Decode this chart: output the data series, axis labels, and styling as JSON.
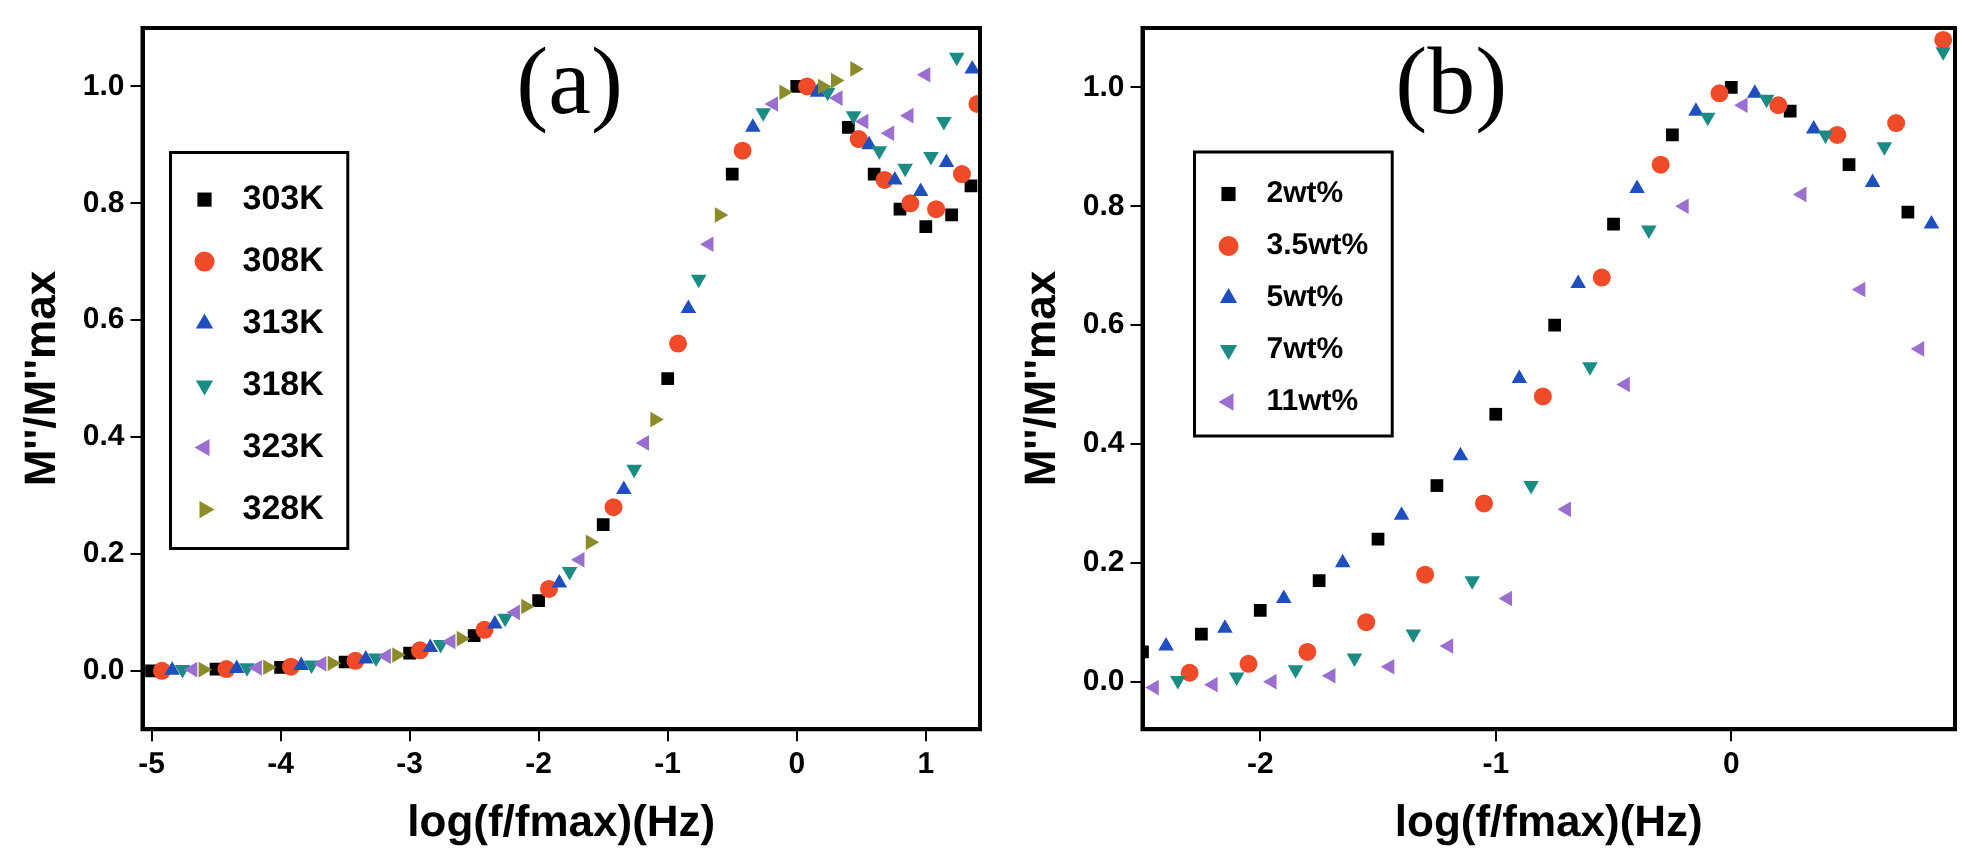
{
  "chart_data": [
    {
      "type": "scatter",
      "xlabel": "log(f/fmax)(Hz)",
      "ylabel": "M''/M''max",
      "annotations": [
        "(a)"
      ],
      "legend": "left",
      "grid": false,
      "xlim": [
        -5.07,
        1.42
      ],
      "xticks": [
        -5,
        -4,
        -3,
        -2,
        -1,
        0,
        1
      ],
      "ylim": [
        -0.1,
        1.1
      ],
      "yticks": [
        {
          "value": 0,
          "label": "0.0"
        },
        {
          "value": 0.2,
          "label": "0.2"
        },
        {
          "value": 0.4,
          "label": "0.4"
        },
        {
          "value": 0.6,
          "label": "0.6"
        },
        {
          "value": 0.8,
          "label": "0.8"
        },
        {
          "value": 1,
          "label": "1.0"
        }
      ],
      "series": [
        {
          "name": "303K",
          "color": "#000000",
          "marker": "square",
          "x": [
            -5,
            -4.5,
            -4,
            -3.5,
            -3,
            -2.5,
            -2,
            -1.5,
            -1,
            -0.5,
            0,
            0.4,
            0.6,
            0.8,
            1.0,
            1.2,
            1.35
          ],
          "values": [
            0,
            0.003,
            0.006,
            0.015,
            0.03,
            0.06,
            0.12,
            0.25,
            0.5,
            0.85,
            1.0,
            0.93,
            0.85,
            0.79,
            0.76,
            0.78,
            0.83
          ]
        },
        {
          "name": "308K",
          "color": "#f04a28",
          "marker": "circle",
          "x": [
            -4.92,
            -4.42,
            -3.92,
            -3.42,
            -2.92,
            -2.42,
            -1.92,
            -1.42,
            -0.92,
            -0.42,
            0.08,
            0.48,
            0.68,
            0.88,
            1.08,
            1.28,
            1.4
          ],
          "values": [
            0,
            0.003,
            0.007,
            0.017,
            0.035,
            0.07,
            0.14,
            0.28,
            0.56,
            0.89,
            1.0,
            0.91,
            0.84,
            0.8,
            0.79,
            0.85,
            0.97
          ]
        },
        {
          "name": "313K",
          "color": "#1f4fbf",
          "marker": "triangle",
          "x": [
            -4.84,
            -4.34,
            -3.84,
            -3.34,
            -2.84,
            -2.34,
            -1.84,
            -1.34,
            -0.84,
            -0.34,
            0.16,
            0.56,
            0.76,
            0.96,
            1.16,
            1.36
          ],
          "values": [
            0.001,
            0.004,
            0.009,
            0.02,
            0.04,
            0.08,
            0.15,
            0.31,
            0.62,
            0.93,
            0.99,
            0.9,
            0.84,
            0.82,
            0.87,
            1.03
          ]
        },
        {
          "name": "318K",
          "color": "#1a8c84",
          "marker": "triangle-down",
          "x": [
            -4.76,
            -4.26,
            -3.76,
            -3.26,
            -2.76,
            -2.26,
            -1.76,
            -1.26,
            -0.76,
            -0.26,
            0.24,
            0.44,
            0.64,
            0.84,
            1.04,
            1.14,
            1.24
          ],
          "values": [
            0.002,
            0.005,
            0.01,
            0.022,
            0.045,
            0.09,
            0.17,
            0.345,
            0.67,
            0.955,
            0.99,
            0.95,
            0.89,
            0.86,
            0.88,
            0.94,
            1.05
          ]
        },
        {
          "name": "323K",
          "color": "#9b6fcf",
          "marker": "triangle-left",
          "x": [
            -4.68,
            -4.18,
            -3.68,
            -3.18,
            -2.68,
            -2.18,
            -1.68,
            -1.18,
            -0.68,
            -0.18,
            0.32,
            0.52,
            0.72,
            0.87,
            1.0
          ],
          "values": [
            0.002,
            0.005,
            0.012,
            0.025,
            0.05,
            0.1,
            0.19,
            0.39,
            0.73,
            0.97,
            0.98,
            0.94,
            0.92,
            0.95,
            1.02
          ]
        },
        {
          "name": "328K",
          "color": "#8b8b2a",
          "marker": "triangle-right",
          "x": [
            -4.6,
            -4.1,
            -3.6,
            -3.1,
            -2.6,
            -2.1,
            -1.6,
            -1.1,
            -0.6,
            -0.1,
            0.2,
            0.3,
            0.45
          ],
          "values": [
            0.002,
            0.006,
            0.013,
            0.027,
            0.055,
            0.11,
            0.22,
            0.43,
            0.78,
            0.99,
            1.0,
            1.01,
            1.03
          ]
        }
      ]
    },
    {
      "type": "scatter",
      "xlabel": "log(f/fmax)(Hz)",
      "ylabel": "M''/M''max",
      "annotations": [
        "(b)"
      ],
      "legend": "top left",
      "grid": false,
      "xlim": [
        -2.5,
        0.95
      ],
      "xticks": [
        -2,
        -1,
        0
      ],
      "ylim": [
        -0.08,
        1.1
      ],
      "yticks": [
        {
          "value": 0,
          "label": "0.0"
        },
        {
          "value": 0.2,
          "label": "0.2"
        },
        {
          "value": 0.4,
          "label": "0.4"
        },
        {
          "value": 0.6,
          "label": "0.6"
        },
        {
          "value": 0.8,
          "label": "0.8"
        },
        {
          "value": 1,
          "label": "1.0"
        }
      ],
      "series": [
        {
          "name": "2wt%",
          "color": "#000000",
          "marker": "square",
          "x": [
            -2.5,
            -2.25,
            -2,
            -1.75,
            -1.5,
            -1.25,
            -1,
            -0.75,
            -0.5,
            -0.25,
            0,
            0.25,
            0.5,
            0.75
          ],
          "values": [
            0.05,
            0.08,
            0.12,
            0.17,
            0.24,
            0.33,
            0.45,
            0.6,
            0.77,
            0.92,
            1.0,
            0.96,
            0.87,
            0.79
          ]
        },
        {
          "name": "3.5wt%",
          "color": "#f04a28",
          "marker": "circle",
          "x": [
            -2.3,
            -2.05,
            -1.8,
            -1.55,
            -1.3,
            -1.05,
            -0.8,
            -0.55,
            -0.3,
            -0.05,
            0.2,
            0.45,
            0.7,
            0.9
          ],
          "values": [
            0.015,
            0.03,
            0.05,
            0.1,
            0.18,
            0.3,
            0.48,
            0.68,
            0.87,
            0.99,
            0.97,
            0.92,
            0.94,
            1.08
          ]
        },
        {
          "name": "5wt%",
          "color": "#1f4fbf",
          "marker": "triangle",
          "x": [
            -2.4,
            -2.15,
            -1.9,
            -1.65,
            -1.4,
            -1.15,
            -0.9,
            -0.65,
            -0.4,
            -0.15,
            0.1,
            0.35,
            0.6,
            0.85
          ],
          "values": [
            0.06,
            0.09,
            0.14,
            0.2,
            0.28,
            0.38,
            0.51,
            0.67,
            0.83,
            0.96,
            0.99,
            0.93,
            0.84,
            0.77
          ]
        },
        {
          "name": "7wt%",
          "color": "#1a8c84",
          "marker": "triangle-down",
          "x": [
            -2.35,
            -2.1,
            -1.85,
            -1.6,
            -1.35,
            -1.1,
            -0.85,
            -0.6,
            -0.35,
            -0.1,
            0.15,
            0.4,
            0.65,
            0.9
          ],
          "values": [
            0.002,
            0.008,
            0.02,
            0.04,
            0.08,
            0.17,
            0.33,
            0.53,
            0.76,
            0.95,
            0.98,
            0.92,
            0.9,
            1.06
          ]
        },
        {
          "name": "11wt%",
          "color": "#9b6fcf",
          "marker": "triangle-left",
          "x": [
            -2.45,
            -2.2,
            -1.95,
            -1.7,
            -1.45,
            -1.2,
            -0.95,
            -0.7,
            -0.45,
            -0.2,
            0.05,
            0.3,
            0.55,
            0.8
          ],
          "values": [
            -0.01,
            -0.005,
            0,
            0.01,
            0.025,
            0.06,
            0.14,
            0.29,
            0.5,
            0.8,
            0.97,
            0.82,
            0.66,
            0.56
          ]
        }
      ]
    }
  ]
}
